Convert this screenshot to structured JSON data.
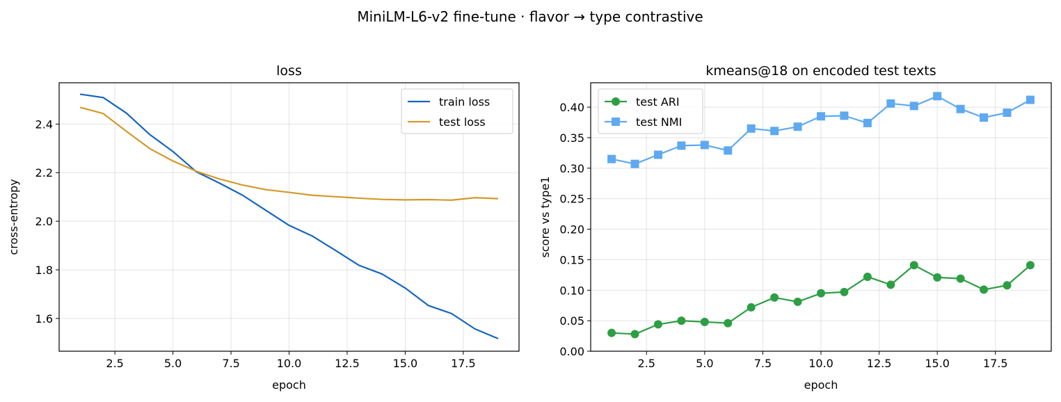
{
  "suptitle": "MiniLM-L6-v2 fine-tune · flavor → type contrastive",
  "chart_data": [
    {
      "type": "line",
      "title": "loss",
      "xlabel": "epoch",
      "ylabel": "cross-entropy",
      "xlim": [
        0.1,
        19.9
      ],
      "ylim": [
        1.465,
        2.57
      ],
      "xticks": [
        2.5,
        5.0,
        7.5,
        10.0,
        12.5,
        15.0,
        17.5
      ],
      "xtick_labels": [
        "2.5",
        "5.0",
        "7.5",
        "10.0",
        "12.5",
        "15.0",
        "17.5"
      ],
      "yticks": [
        1.6,
        1.8,
        2.0,
        2.2,
        2.4
      ],
      "ytick_labels": [
        "1.6",
        "1.8",
        "2.0",
        "2.2",
        "2.4"
      ],
      "grid": true,
      "legend_position": "upper right",
      "x": [
        1,
        2,
        3,
        4,
        5,
        6,
        7,
        8,
        9,
        10,
        11,
        12,
        13,
        14,
        15,
        16,
        17,
        18,
        19
      ],
      "series": [
        {
          "name": "train loss",
          "color": "#1565c0",
          "marker": "none",
          "values": [
            2.523,
            2.509,
            2.445,
            2.357,
            2.287,
            2.204,
            2.157,
            2.107,
            2.045,
            1.983,
            1.939,
            1.88,
            1.819,
            1.783,
            1.725,
            1.653,
            1.62,
            1.557,
            1.517
          ]
        },
        {
          "name": "test loss",
          "color": "#d4992a",
          "marker": "none",
          "values": [
            2.469,
            2.443,
            2.37,
            2.299,
            2.248,
            2.206,
            2.174,
            2.149,
            2.13,
            2.119,
            2.107,
            2.101,
            2.095,
            2.09,
            2.088,
            2.089,
            2.087,
            2.097,
            2.093
          ]
        }
      ]
    },
    {
      "type": "line",
      "title": "kmeans@18 on encoded test texts",
      "xlabel": "epoch",
      "ylabel": "score vs type1",
      "xlim": [
        0.1,
        19.9
      ],
      "ylim": [
        0.0,
        0.44
      ],
      "xticks": [
        2.5,
        5.0,
        7.5,
        10.0,
        12.5,
        15.0,
        17.5
      ],
      "xtick_labels": [
        "2.5",
        "5.0",
        "7.5",
        "10.0",
        "12.5",
        "15.0",
        "17.5"
      ],
      "yticks": [
        0.0,
        0.05,
        0.1,
        0.15,
        0.2,
        0.25,
        0.3,
        0.35,
        0.4
      ],
      "ytick_labels": [
        "0.00",
        "0.05",
        "0.10",
        "0.15",
        "0.20",
        "0.25",
        "0.30",
        "0.35",
        "0.40"
      ],
      "grid": true,
      "legend_position": "upper left",
      "x": [
        1,
        2,
        3,
        4,
        5,
        6,
        7,
        8,
        9,
        10,
        11,
        12,
        13,
        14,
        15,
        16,
        17,
        18,
        19
      ],
      "series": [
        {
          "name": "test ARI",
          "color": "#2e9e44",
          "marker": "circle",
          "values": [
            0.03,
            0.028,
            0.044,
            0.05,
            0.048,
            0.046,
            0.072,
            0.088,
            0.081,
            0.095,
            0.097,
            0.122,
            0.109,
            0.141,
            0.121,
            0.119,
            0.101,
            0.108,
            0.141
          ]
        },
        {
          "name": "test NMI",
          "color": "#5ea9f0",
          "marker": "square",
          "values": [
            0.315,
            0.307,
            0.322,
            0.337,
            0.338,
            0.329,
            0.365,
            0.361,
            0.368,
            0.385,
            0.386,
            0.374,
            0.406,
            0.402,
            0.418,
            0.397,
            0.383,
            0.391,
            0.412
          ]
        }
      ]
    }
  ]
}
